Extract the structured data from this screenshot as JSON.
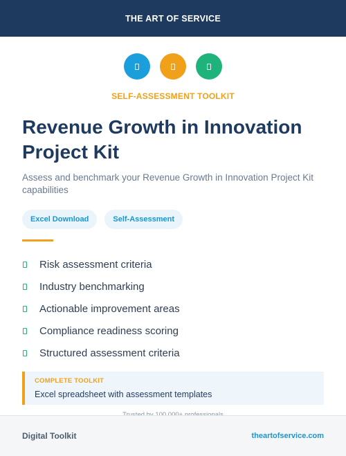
{
  "header": {
    "brand": "THE ART OF SERVICE"
  },
  "icons": [
    {
      "name": "blue-badge-icon",
      "color": "#1a9fdc"
    },
    {
      "name": "orange-badge-icon",
      "color": "#f0a019"
    },
    {
      "name": "green-badge-icon",
      "color": "#1fb37c"
    }
  ],
  "hero": {
    "kicker": "SELF-ASSESSMENT TOOLKIT",
    "title": "Revenue Growth in Innovation Project Kit",
    "subtitle": "Assess and benchmark your Revenue Growth in Innovation Project Kit capabilities"
  },
  "tags": [
    "Excel Download",
    "Self-Assessment"
  ],
  "features": [
    "Risk assessment criteria",
    "Industry benchmarking",
    "Actionable improvement areas",
    "Compliance readiness scoring",
    "Structured assessment criteria"
  ],
  "callout": {
    "kicker": "COMPLETE TOOLKIT",
    "text": "Excel spreadsheet with assessment templates"
  },
  "trust": "Trusted by 100,000+ professionals",
  "footer": {
    "left": "Digital Toolkit",
    "right": "theartofservice.com"
  },
  "colors": {
    "navy": "#1e3a5f",
    "accent_orange": "#f0a019",
    "accent_blue": "#1a95d0",
    "accent_green": "#20b07a"
  }
}
